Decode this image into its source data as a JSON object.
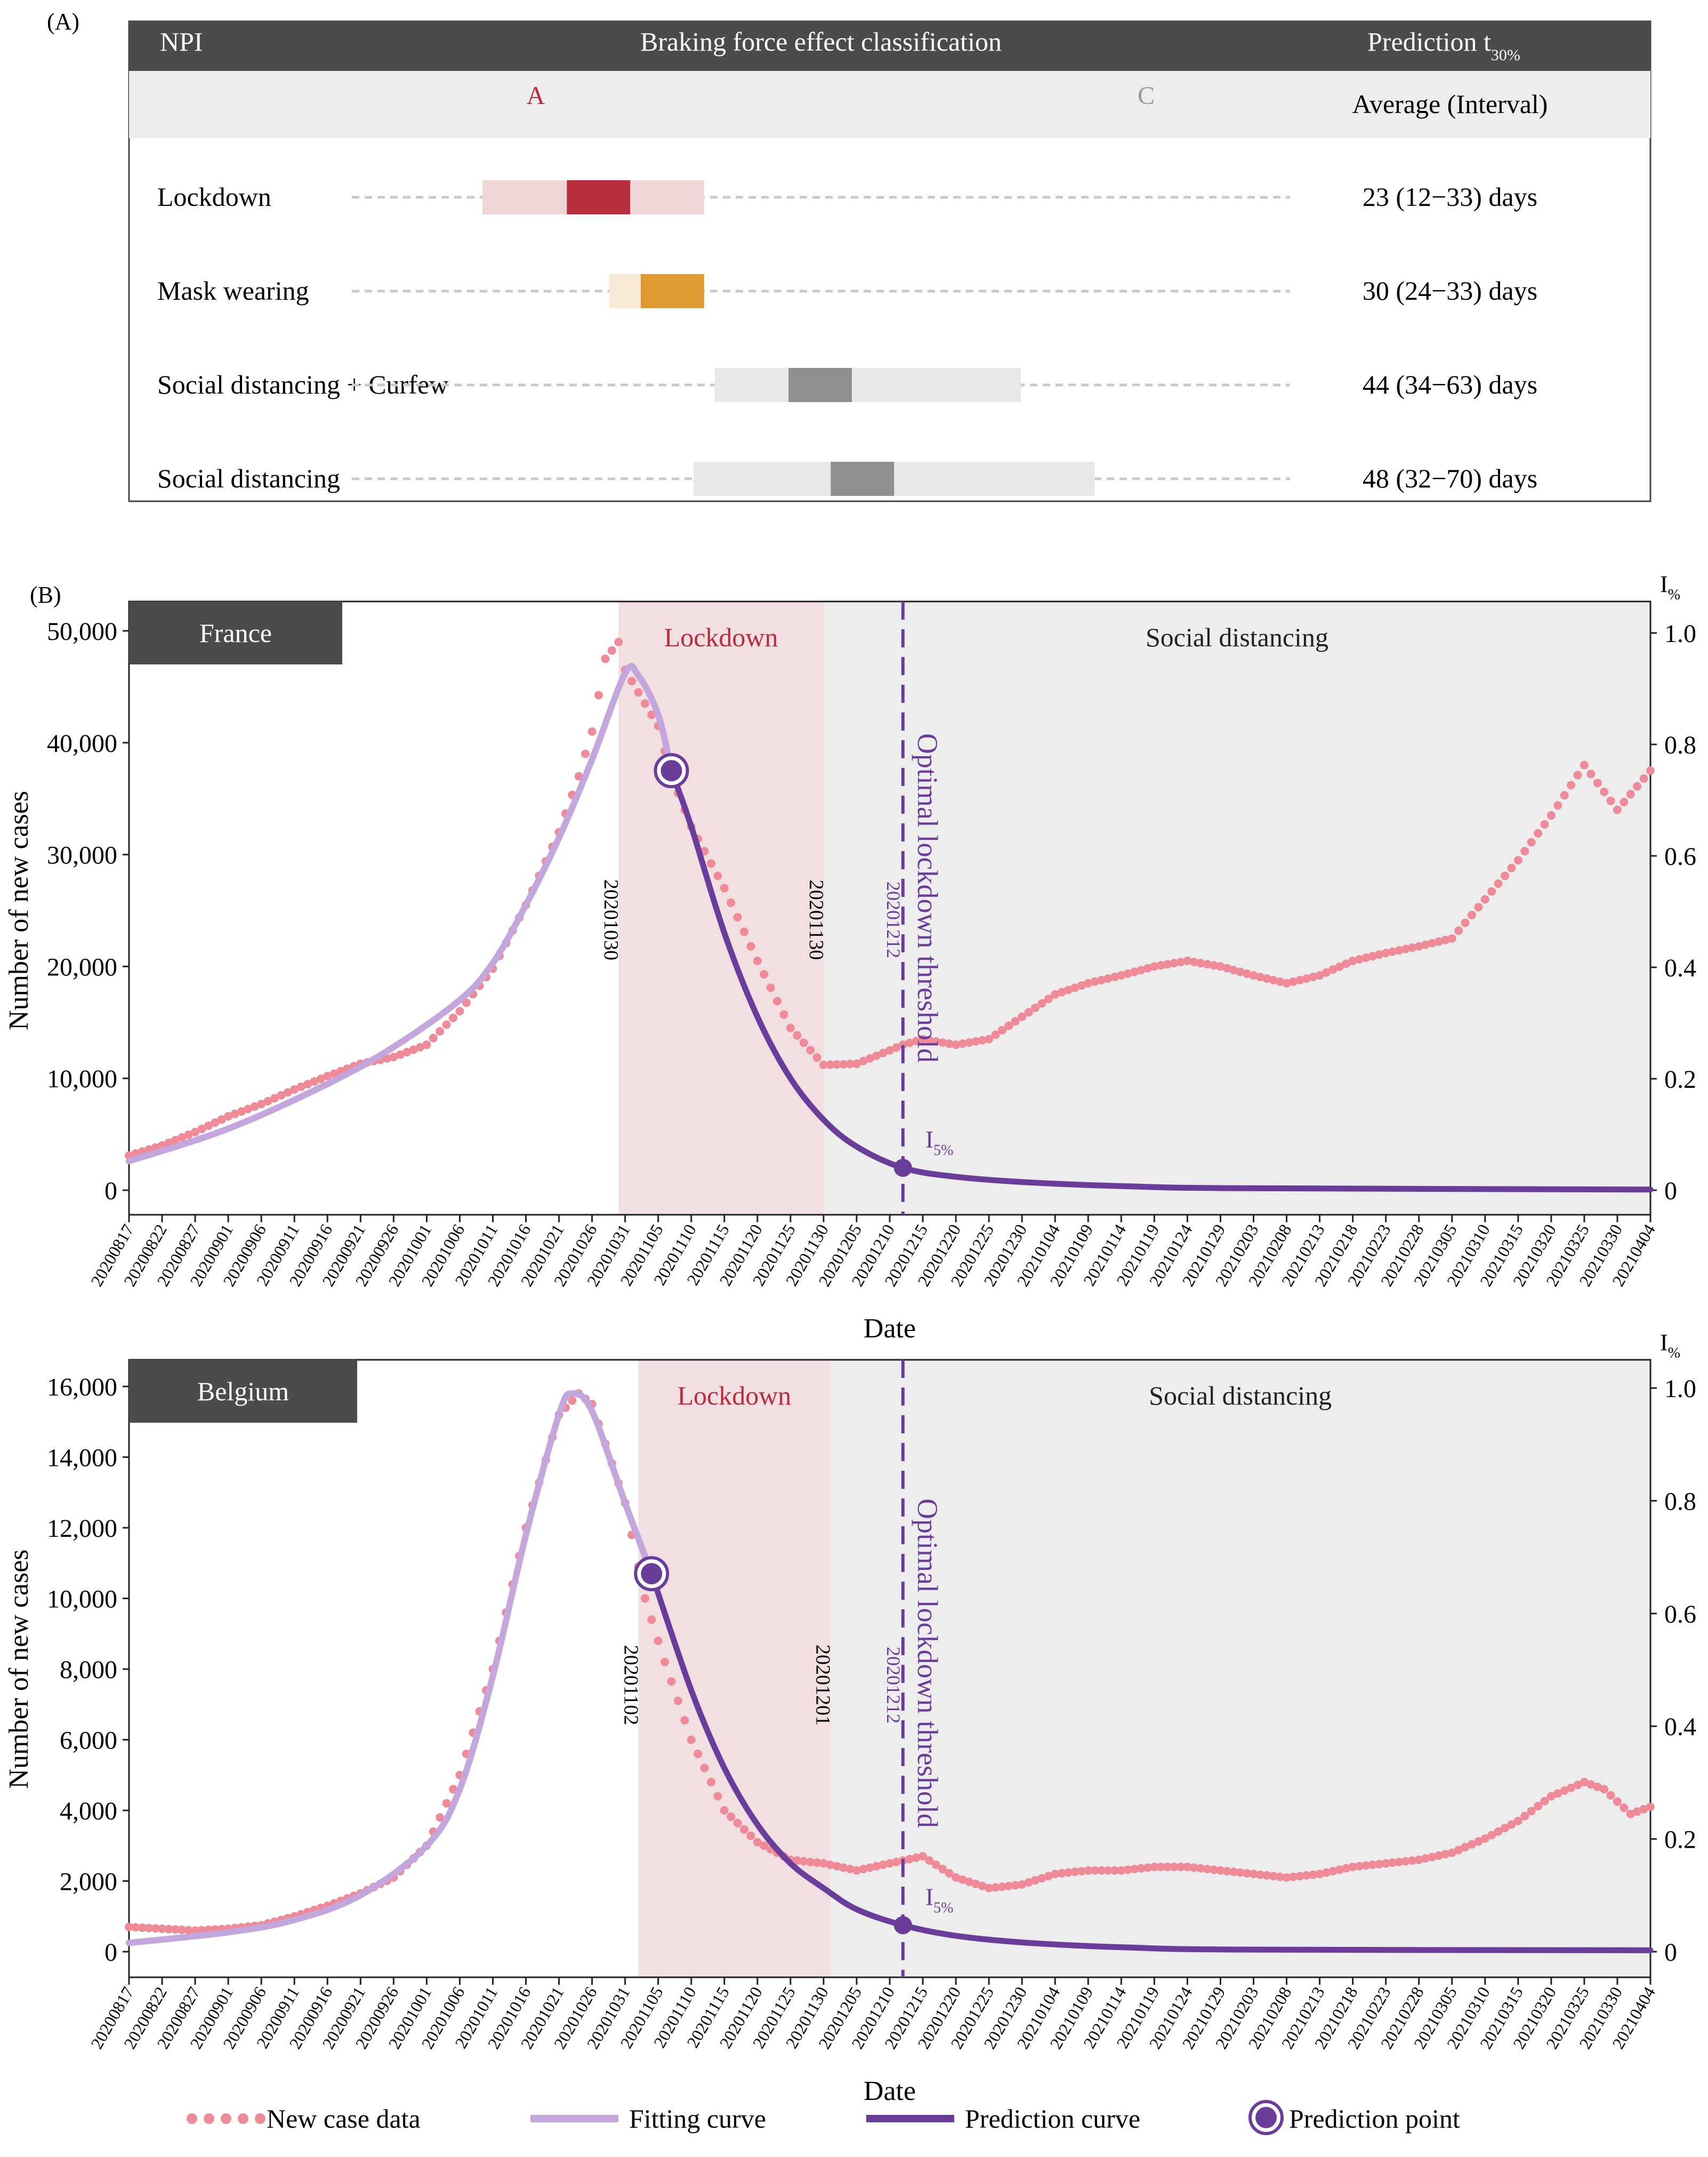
{
  "panel_a": {
    "label": "(A)",
    "header": {
      "npi": "NPI",
      "classification": "Braking force effect classification",
      "prediction_base": "Prediction t",
      "prediction_sub": "30%"
    },
    "subheader": {
      "grade_a": "A",
      "grade_c": "C",
      "avg": "Average (Interval)"
    },
    "rows": [
      {
        "name": "Lockdown",
        "range_days": [
          12,
          33
        ],
        "avg_days": 23,
        "text": "23 (12−33) days",
        "light": "#f0d5d7",
        "dark": "#b82c3b"
      },
      {
        "name": "Mask wearing",
        "range_days": [
          24,
          33
        ],
        "avg_days": 30,
        "text": "30 (24−33) days",
        "light": "#f8e9d6",
        "dark": "#e09a33"
      },
      {
        "name": "Social distancing + Curfew",
        "range_days": [
          34,
          63
        ],
        "avg_days": 44,
        "text": "44 (34−63) days",
        "light": "#e8e8e8",
        "dark": "#8f8f8f"
      },
      {
        "name": "Social distancing",
        "range_days": [
          32,
          70
        ],
        "avg_days": 48,
        "text": "48 (32−70) days",
        "light": "#e8e8e8",
        "dark": "#8f8f8f"
      }
    ]
  },
  "panel_b_label": "(B)",
  "colors": {
    "lockdown_band": "#f1dfe1",
    "distancing_band": "#ededed",
    "data": "#ef8a99",
    "fit": "#c3a6dc",
    "pred": "#6b3d9a",
    "lockdown_text": "#b82c3b",
    "header_bg": "#4b4b4b"
  },
  "legend": {
    "data": "New case data",
    "fit": "Fitting curve",
    "pred": "Prediction curve",
    "point": "Prediction point"
  },
  "chart_data": [
    {
      "type": "scatter+line",
      "country": "France",
      "xlabel": "Date",
      "ylabel": "Number of new cases",
      "y2label": "I%",
      "ylim": [
        0,
        50000
      ],
      "y_ticks": [
        "0",
        "10,000",
        "20,000",
        "30,000",
        "40,000",
        "50,000"
      ],
      "y2_ticks": [
        "0",
        "0.2",
        "0.4",
        "0.6",
        "0.8",
        "1.0"
      ],
      "x_tick_labels": [
        "20200817",
        "20200822",
        "20200827",
        "20200901",
        "20200906",
        "20200911",
        "20200916",
        "20200921",
        "20200926",
        "20201001",
        "20201006",
        "20201011",
        "20201016",
        "20201021",
        "20201026",
        "20201031",
        "20201105",
        "20201110",
        "20201115",
        "20201120",
        "20201125",
        "20201130",
        "20201205",
        "20201210",
        "20201215",
        "20201220",
        "20201225",
        "20201230",
        "20210104",
        "20210109",
        "20210114",
        "20210119",
        "20210124",
        "20210129",
        "20210203",
        "20210208",
        "20210213",
        "20210218",
        "20210223",
        "20210228",
        "20210305",
        "20210310",
        "20210315",
        "20210320",
        "20210325",
        "20210330",
        "20210404"
      ],
      "phases": [
        {
          "name": "Lockdown",
          "from": "20201030",
          "to": "20201130"
        },
        {
          "name": "Social distancing",
          "from": "20201130",
          "to": "20210404"
        }
      ],
      "phase_marks": [
        "20201030",
        "20201130"
      ],
      "threshold": {
        "date": "20201212",
        "label": "Optimal lockdown threshold",
        "point_label": "I",
        "point_sub": "5%"
      },
      "prediction_point": {
        "date": "20201107",
        "value": 37500
      },
      "threshold_point": {
        "date": "20201212",
        "value": 2000
      },
      "fit_curve": [
        [
          "20200817",
          2600
        ],
        [
          "20200901",
          5500
        ],
        [
          "20200916",
          9500
        ],
        [
          "20200926",
          12800
        ],
        [
          "20201006",
          17000
        ],
        [
          "20201011",
          20300
        ],
        [
          "20201016",
          25500
        ],
        [
          "20201021",
          31500
        ],
        [
          "20201026",
          38500
        ],
        [
          "20201031",
          46200
        ],
        [
          "20201102",
          46000
        ],
        [
          "20201105",
          42500
        ],
        [
          "20201107",
          37500
        ]
      ],
      "pred_curve": [
        [
          "20201107",
          37500
        ],
        [
          "20201110",
          32500
        ],
        [
          "20201115",
          23000
        ],
        [
          "20201120",
          15500
        ],
        [
          "20201125",
          10000
        ],
        [
          "20201130",
          6300
        ],
        [
          "20201205",
          3900
        ],
        [
          "20201212",
          2000
        ],
        [
          "20201220",
          1200
        ],
        [
          "20201231",
          700
        ],
        [
          "20210115",
          350
        ],
        [
          "20210201",
          180
        ],
        [
          "20210404",
          60
        ]
      ],
      "new_cases": [
        [
          "20200817",
          3100
        ],
        [
          "20200822",
          4000
        ],
        [
          "20200827",
          5200
        ],
        [
          "20200901",
          6600
        ],
        [
          "20200906",
          7700
        ],
        [
          "20200911",
          9000
        ],
        [
          "20200916",
          10200
        ],
        [
          "20200921",
          11300
        ],
        [
          "20200926",
          11900
        ],
        [
          "20201001",
          13000
        ],
        [
          "20201006",
          16000
        ],
        [
          "20201011",
          19800
        ],
        [
          "20201016",
          25500
        ],
        [
          "20201021",
          32000
        ],
        [
          "20201024",
          37000
        ],
        [
          "20201026",
          41000
        ],
        [
          "20201028",
          47500
        ],
        [
          "20201030",
          49000
        ],
        [
          "20201031",
          46500
        ],
        [
          "20201102",
          44500
        ],
        [
          "20201105",
          41500
        ],
        [
          "20201107",
          37000
        ],
        [
          "20201110",
          32500
        ],
        [
          "20201115",
          27000
        ],
        [
          "20201120",
          20500
        ],
        [
          "20201125",
          14500
        ],
        [
          "20201130",
          11200
        ],
        [
          "20201205",
          11300
        ],
        [
          "20201210",
          12500
        ],
        [
          "20201212",
          13000
        ],
        [
          "20201215",
          13500
        ],
        [
          "20201220",
          13000
        ],
        [
          "20201225",
          13500
        ],
        [
          "20201230",
          15500
        ],
        [
          "20210104",
          17500
        ],
        [
          "20210109",
          18500
        ],
        [
          "20210114",
          19200
        ],
        [
          "20210119",
          20000
        ],
        [
          "20210124",
          20500
        ],
        [
          "20210129",
          20000
        ],
        [
          "20210203",
          19200
        ],
        [
          "20210208",
          18500
        ],
        [
          "20210213",
          19200
        ],
        [
          "20210218",
          20500
        ],
        [
          "20210223",
          21200
        ],
        [
          "20210228",
          21800
        ],
        [
          "20210305",
          22500
        ],
        [
          "20210310",
          26000
        ],
        [
          "20210315",
          29500
        ],
        [
          "20210320",
          33500
        ],
        [
          "20210325",
          38000
        ],
        [
          "20210330",
          34000
        ],
        [
          "20210404",
          37500
        ]
      ]
    },
    {
      "type": "scatter+line",
      "country": "Belgium",
      "xlabel": "Date",
      "ylabel": "Number of new cases",
      "y2label": "I%",
      "ylim": [
        0,
        16000
      ],
      "y_ticks": [
        "0",
        "2,000",
        "4,000",
        "6,000",
        "8,000",
        "10,000",
        "12,000",
        "14,000",
        "16,000"
      ],
      "y2_ticks": [
        "0",
        "0.2",
        "0.4",
        "0.6",
        "0.8",
        "1.0"
      ],
      "x_tick_labels": [
        "20200817",
        "20200822",
        "20200827",
        "20200901",
        "20200906",
        "20200911",
        "20200916",
        "20200921",
        "20200926",
        "20201001",
        "20201006",
        "20201011",
        "20201016",
        "20201021",
        "20201026",
        "20201031",
        "20201105",
        "20201110",
        "20201115",
        "20201120",
        "20201125",
        "20201130",
        "20201205",
        "20201210",
        "20201215",
        "20201220",
        "20201225",
        "20201230",
        "20210104",
        "20210109",
        "20210114",
        "20210119",
        "20210124",
        "20210129",
        "20210203",
        "20210208",
        "20210213",
        "20210218",
        "20210223",
        "20210228",
        "20210305",
        "20210310",
        "20210315",
        "20210320",
        "20210325",
        "20210330",
        "20210404"
      ],
      "phases": [
        {
          "name": "Lockdown",
          "from": "20201102",
          "to": "20201201"
        },
        {
          "name": "Social distancing",
          "from": "20201201",
          "to": "20210404"
        }
      ],
      "phase_marks": [
        "20201102",
        "20201201"
      ],
      "threshold": {
        "date": "20201212",
        "label": "Optimal lockdown threshold",
        "point_label": "I",
        "point_sub": "5%"
      },
      "prediction_point": {
        "date": "20201104",
        "value": 10700
      },
      "threshold_point": {
        "date": "20201212",
        "value": 750
      },
      "fit_curve": [
        [
          "20200817",
          250
        ],
        [
          "20200901",
          550
        ],
        [
          "20200911",
          900
        ],
        [
          "20200921",
          1600
        ],
        [
          "20201001",
          3000
        ],
        [
          "20201006",
          4600
        ],
        [
          "20201011",
          7800
        ],
        [
          "20201016",
          11800
        ],
        [
          "20201021",
          15200
        ],
        [
          "20201023",
          15800
        ],
        [
          "20201026",
          15300
        ],
        [
          "20201031",
          12700
        ],
        [
          "20201104",
          10700
        ]
      ],
      "pred_curve": [
        [
          "20201104",
          10700
        ],
        [
          "20201110",
          7400
        ],
        [
          "20201115",
          5200
        ],
        [
          "20201120",
          3600
        ],
        [
          "20201125",
          2500
        ],
        [
          "20201130",
          1800
        ],
        [
          "20201205",
          1200
        ],
        [
          "20201212",
          750
        ],
        [
          "20201220",
          450
        ],
        [
          "20201231",
          250
        ],
        [
          "20210115",
          120
        ],
        [
          "20210201",
          60
        ],
        [
          "20210404",
          40
        ]
      ],
      "new_cases": [
        [
          "20200817",
          700
        ],
        [
          "20200822",
          650
        ],
        [
          "20200827",
          600
        ],
        [
          "20200901",
          650
        ],
        [
          "20200906",
          750
        ],
        [
          "20200911",
          1000
        ],
        [
          "20200916",
          1300
        ],
        [
          "20200921",
          1650
        ],
        [
          "20200926",
          2100
        ],
        [
          "20201001",
          3000
        ],
        [
          "20201006",
          5000
        ],
        [
          "20201011",
          8000
        ],
        [
          "20201016",
          12000
        ],
        [
          "20201021",
          15200
        ],
        [
          "20201024",
          15800
        ],
        [
          "20201026",
          15500
        ],
        [
          "20201031",
          12700
        ],
        [
          "20201103",
          10000
        ],
        [
          "20201106",
          8200
        ],
        [
          "20201110",
          6000
        ],
        [
          "20201115",
          4000
        ],
        [
          "20201120",
          3100
        ],
        [
          "20201125",
          2600
        ],
        [
          "20201130",
          2500
        ],
        [
          "20201205",
          2300
        ],
        [
          "20201210",
          2500
        ],
        [
          "20201215",
          2700
        ],
        [
          "20201220",
          2100
        ],
        [
          "20201225",
          1800
        ],
        [
          "20201230",
          1900
        ],
        [
          "20210104",
          2200
        ],
        [
          "20210109",
          2300
        ],
        [
          "20210114",
          2300
        ],
        [
          "20210119",
          2400
        ],
        [
          "20210124",
          2400
        ],
        [
          "20210129",
          2300
        ],
        [
          "20210203",
          2200
        ],
        [
          "20210208",
          2100
        ],
        [
          "20210213",
          2200
        ],
        [
          "20210218",
          2400
        ],
        [
          "20210223",
          2500
        ],
        [
          "20210228",
          2600
        ],
        [
          "20210305",
          2800
        ],
        [
          "20210310",
          3200
        ],
        [
          "20210315",
          3700
        ],
        [
          "20210320",
          4400
        ],
        [
          "20210325",
          4800
        ],
        [
          "20210328",
          4600
        ],
        [
          "20210401",
          3900
        ],
        [
          "20210404",
          4100
        ]
      ]
    }
  ]
}
